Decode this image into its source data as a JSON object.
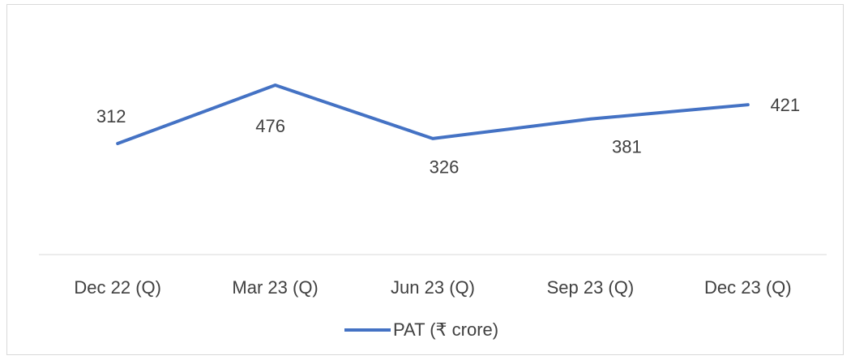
{
  "chart_data": {
    "type": "line",
    "categories": [
      "Dec 22 (Q)",
      "Mar 23 (Q)",
      "Jun 23 (Q)",
      "Sep 23 (Q)",
      "Dec 23 (Q)"
    ],
    "series": [
      {
        "name": "PAT (₹ crore)",
        "color": "#4472c4",
        "values": [
          312,
          476,
          326,
          381,
          421
        ]
      }
    ],
    "ylim": [
      0,
      600
    ]
  }
}
